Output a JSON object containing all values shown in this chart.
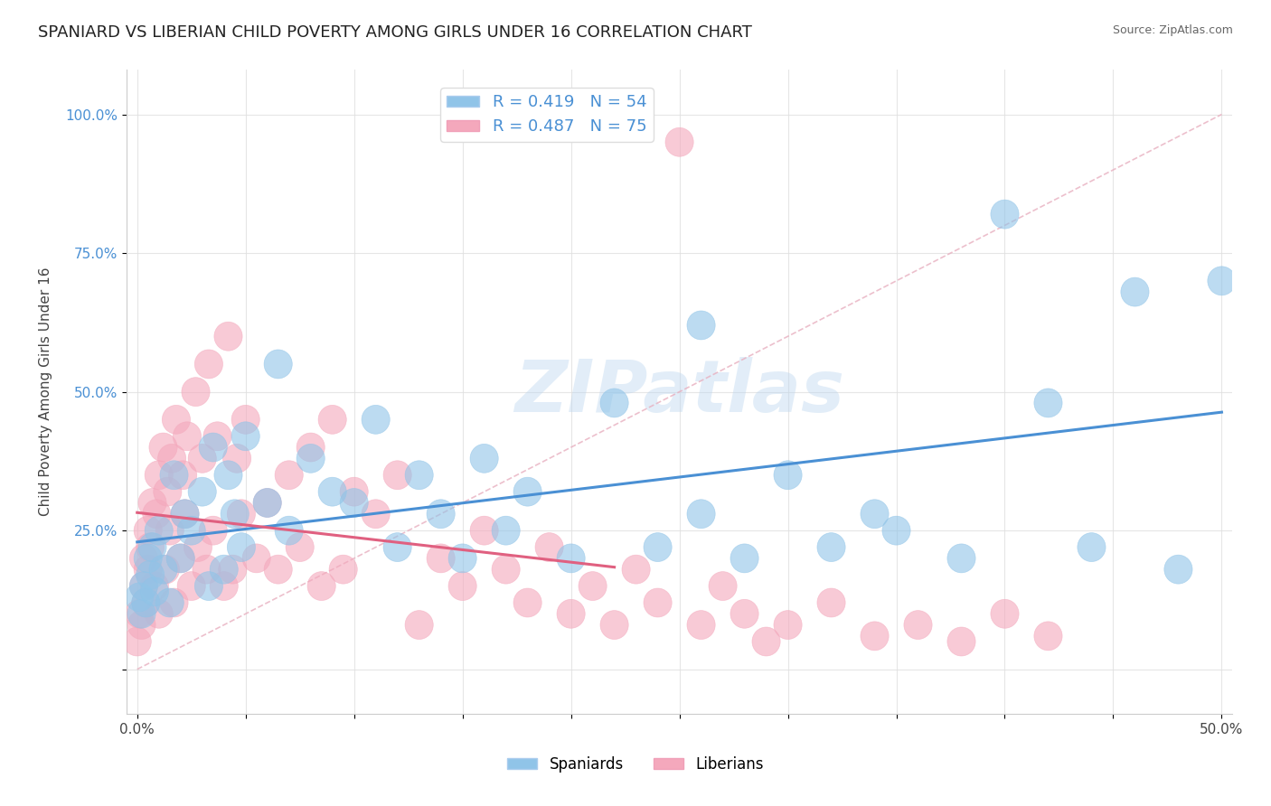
{
  "title": "SPANIARD VS LIBERIAN CHILD POVERTY AMONG GIRLS UNDER 16 CORRELATION CHART",
  "source": "Source: ZipAtlas.com",
  "ylabel": "Child Poverty Among Girls Under 16",
  "xlim": [
    -0.005,
    0.505
  ],
  "ylim": [
    -0.08,
    1.08
  ],
  "xticks": [
    0.0,
    0.05,
    0.1,
    0.15,
    0.2,
    0.25,
    0.3,
    0.35,
    0.4,
    0.45,
    0.5
  ],
  "xticklabels": [
    "0.0%",
    "",
    "",
    "",
    "",
    "",
    "",
    "",
    "",
    "",
    "50.0%"
  ],
  "yticks": [
    0.0,
    0.25,
    0.5,
    0.75,
    1.0
  ],
  "yticklabels": [
    "",
    "25.0%",
    "50.0%",
    "75.0%",
    "100.0%"
  ],
  "legend_blue_label": "R = 0.419   N = 54",
  "legend_pink_label": "R = 0.487   N = 75",
  "legend_blue_color": "#90c4e8",
  "legend_pink_color": "#f4a8bc",
  "blue_marker_color": "#90c4e8",
  "pink_marker_color": "#f4a8bc",
  "blue_line_color": "#4a90d4",
  "pink_line_color": "#e06080",
  "ref_line_color": "#e8b0c0",
  "watermark": "ZIPatlas",
  "watermark_color": "#b8d4ee",
  "title_fontsize": 13,
  "axis_label_fontsize": 11,
  "tick_fontsize": 11,
  "spaniards_x": [
    0.001,
    0.002,
    0.003,
    0.004,
    0.005,
    0.006,
    0.007,
    0.008,
    0.01,
    0.012,
    0.015,
    0.017,
    0.02,
    0.022,
    0.025,
    0.03,
    0.033,
    0.035,
    0.04,
    0.042,
    0.045,
    0.048,
    0.05,
    0.06,
    0.065,
    0.07,
    0.08,
    0.09,
    0.1,
    0.11,
    0.12,
    0.13,
    0.14,
    0.15,
    0.16,
    0.17,
    0.18,
    0.2,
    0.22,
    0.24,
    0.26,
    0.28,
    0.3,
    0.32,
    0.35,
    0.38,
    0.4,
    0.42,
    0.44,
    0.46,
    0.48,
    0.5,
    0.34,
    0.26
  ],
  "spaniards_y": [
    0.13,
    0.1,
    0.15,
    0.12,
    0.2,
    0.17,
    0.22,
    0.14,
    0.25,
    0.18,
    0.12,
    0.35,
    0.2,
    0.28,
    0.25,
    0.32,
    0.15,
    0.4,
    0.18,
    0.35,
    0.28,
    0.22,
    0.42,
    0.3,
    0.55,
    0.25,
    0.38,
    0.32,
    0.3,
    0.45,
    0.22,
    0.35,
    0.28,
    0.2,
    0.38,
    0.25,
    0.32,
    0.2,
    0.48,
    0.22,
    0.28,
    0.2,
    0.35,
    0.22,
    0.25,
    0.2,
    0.82,
    0.48,
    0.22,
    0.68,
    0.18,
    0.7,
    0.28,
    0.62
  ],
  "liberians_x": [
    0.0,
    0.001,
    0.002,
    0.003,
    0.003,
    0.004,
    0.005,
    0.005,
    0.006,
    0.007,
    0.008,
    0.009,
    0.01,
    0.01,
    0.012,
    0.013,
    0.014,
    0.015,
    0.016,
    0.017,
    0.018,
    0.02,
    0.021,
    0.022,
    0.023,
    0.025,
    0.027,
    0.028,
    0.03,
    0.032,
    0.033,
    0.035,
    0.037,
    0.04,
    0.042,
    0.044,
    0.046,
    0.048,
    0.05,
    0.055,
    0.06,
    0.065,
    0.07,
    0.075,
    0.08,
    0.085,
    0.09,
    0.095,
    0.1,
    0.11,
    0.12,
    0.13,
    0.14,
    0.15,
    0.16,
    0.17,
    0.18,
    0.19,
    0.2,
    0.21,
    0.22,
    0.23,
    0.24,
    0.25,
    0.26,
    0.27,
    0.28,
    0.29,
    0.3,
    0.32,
    0.34,
    0.36,
    0.38,
    0.4,
    0.42
  ],
  "liberians_y": [
    0.05,
    0.1,
    0.08,
    0.15,
    0.2,
    0.12,
    0.18,
    0.25,
    0.22,
    0.3,
    0.15,
    0.28,
    0.35,
    0.1,
    0.4,
    0.18,
    0.32,
    0.25,
    0.38,
    0.12,
    0.45,
    0.2,
    0.35,
    0.28,
    0.42,
    0.15,
    0.5,
    0.22,
    0.38,
    0.18,
    0.55,
    0.25,
    0.42,
    0.15,
    0.6,
    0.18,
    0.38,
    0.28,
    0.45,
    0.2,
    0.3,
    0.18,
    0.35,
    0.22,
    0.4,
    0.15,
    0.45,
    0.18,
    0.32,
    0.28,
    0.35,
    0.08,
    0.2,
    0.15,
    0.25,
    0.18,
    0.12,
    0.22,
    0.1,
    0.15,
    0.08,
    0.18,
    0.12,
    0.95,
    0.08,
    0.15,
    0.1,
    0.05,
    0.08,
    0.12,
    0.06,
    0.08,
    0.05,
    0.1,
    0.06
  ]
}
